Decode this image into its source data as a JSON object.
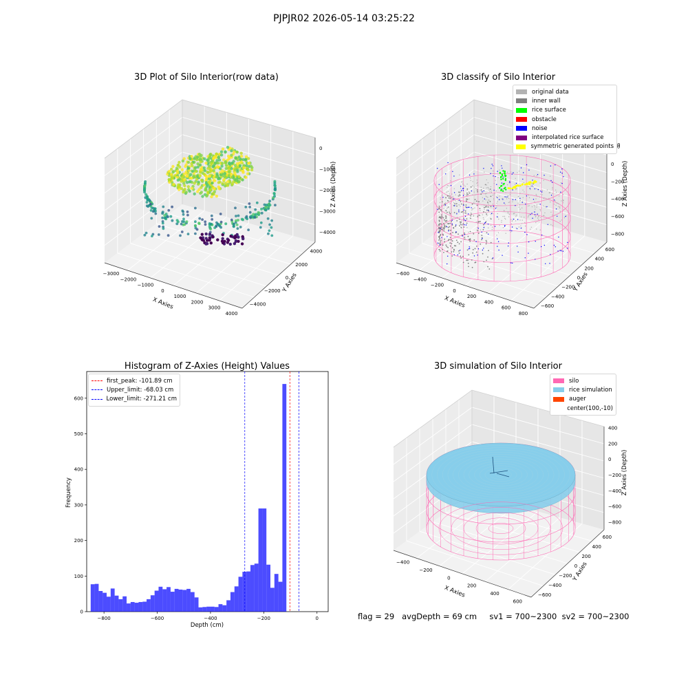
{
  "suptitle": "PJPJR02 2026-05-14 03:25:22",
  "panels": {
    "raw": {
      "title": "3D Plot of Silo Interior(row data)",
      "xlabel": "X Axies",
      "ylabel": "Y Axies",
      "zlabel": "Z Axies (Depth)",
      "xticks": [
        "−3000",
        "−2000",
        "−1000",
        "0",
        "1000",
        "2000",
        "3000",
        "4000"
      ],
      "yticks": [
        "−4000",
        "−2000",
        "0",
        "2000",
        "4000"
      ],
      "zticks": [
        "0",
        "−1000",
        "−2000",
        "−3000",
        "−4000"
      ]
    },
    "classify": {
      "title": "3D classify of Silo Interior",
      "xlabel": "X Axies",
      "ylabel": "Y Axies",
      "zlabel": "Z Axies (Depth)",
      "xticks": [
        "−600",
        "−400",
        "−200",
        "0",
        "200",
        "400",
        "600",
        "800"
      ],
      "yticks": [
        "−600",
        "−400",
        "−200",
        "0",
        "200",
        "400",
        "600"
      ],
      "zticks": [
        "200",
        "0",
        "−200",
        "−400",
        "−600",
        "−800"
      ],
      "z_top_partial": "0",
      "legend": [
        {
          "label": "original data",
          "color": "#b3b3b3"
        },
        {
          "label": "inner wall",
          "color": "#808080"
        },
        {
          "label": "rice surface",
          "color": "#00ff00"
        },
        {
          "label": "obstacle",
          "color": "#ff0000"
        },
        {
          "label": "noise",
          "color": "#0000ff"
        },
        {
          "label": "interpolated rice surface",
          "color": "#800080"
        },
        {
          "label": "symmetric generated points",
          "color": "#ffff00"
        }
      ]
    },
    "simulation": {
      "title": "3D simulation of Silo Interior",
      "xlabel": "X Axies",
      "ylabel": "Y Axies",
      "zlabel": "Z Axies (Depth)",
      "xticks": [
        "−400",
        "−200",
        "0",
        "200",
        "400",
        "600"
      ],
      "yticks": [
        "−600",
        "−400",
        "−200",
        "0",
        "200",
        "400",
        "600"
      ],
      "zticks": [
        "400",
        "200",
        "0",
        "−200",
        "−400",
        "−600",
        "−800"
      ],
      "legend": [
        {
          "label": "silo",
          "color": "#ff69b4"
        },
        {
          "label": "rice simulation",
          "color": "#87ceeb"
        },
        {
          "label": "auger",
          "color": "#ff4500"
        },
        {
          "label": "center(100,-10)",
          "color": ""
        }
      ]
    }
  },
  "chart_data": {
    "type": "bar",
    "title": "Histogram of Z-Axies (Height) Values",
    "xlabel": "Depth (cm)",
    "ylabel": "Frequency",
    "xlim": [
      -865,
      42
    ],
    "ylim": [
      0,
      675
    ],
    "bar_color": "#0000ff",
    "bin_start": -850,
    "bin_width": 15,
    "values": [
      77,
      78,
      58,
      53,
      42,
      65,
      45,
      35,
      43,
      23,
      27,
      25,
      27,
      28,
      35,
      46,
      59,
      70,
      63,
      69,
      56,
      64,
      62,
      61,
      64,
      55,
      40,
      12,
      13,
      14,
      14,
      13,
      21,
      18,
      32,
      55,
      71,
      98,
      112,
      113,
      131,
      135,
      290,
      290,
      132,
      67,
      106,
      84,
      640
    ],
    "xticks": [
      -800,
      -600,
      -400,
      -200,
      0
    ],
    "xtick_labels": [
      "−800",
      "−600",
      "−400",
      "−200",
      "0"
    ],
    "yticks": [
      0,
      100,
      200,
      300,
      400,
      500,
      600
    ],
    "vlines": [
      {
        "label": "first_peak: -101.89 cm",
        "x": -101.89,
        "color": "#ff0000"
      },
      {
        "label": "Upper_limit: -68.03 cm",
        "x": -68.03,
        "color": "#0000ff"
      },
      {
        "label": "Lower_limit: -271.21 cm",
        "x": -271.21,
        "color": "#0000ff"
      }
    ],
    "legend_position": "upper-left"
  },
  "footer": {
    "text": "flag = 29   avgDepth = 69 cm     sv1 = 700~2300  sv2 = 700~2300"
  }
}
